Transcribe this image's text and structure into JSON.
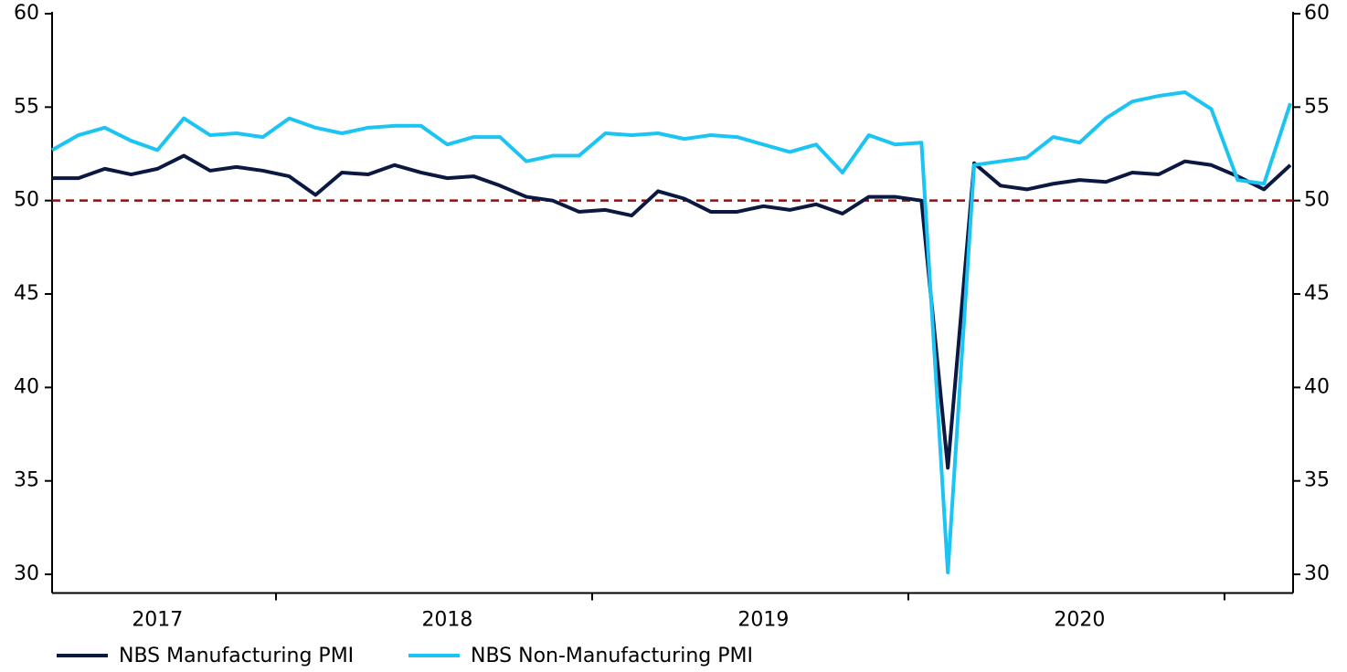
{
  "chart_data": {
    "type": "line",
    "categories": [
      null,
      null,
      null,
      null,
      "2017",
      null,
      null,
      null,
      null,
      null,
      null,
      null,
      null,
      null,
      null,
      "2018",
      null,
      null,
      null,
      null,
      null,
      null,
      null,
      null,
      null,
      null,
      null,
      "2019",
      null,
      null,
      null,
      null,
      null,
      null,
      null,
      null,
      null,
      null,
      null,
      "2020",
      null,
      null,
      null,
      null,
      null,
      null,
      null,
      null
    ],
    "series": [
      {
        "name": "NBS Manufacturing PMI",
        "color": "#0b1840",
        "values": [
          51.2,
          51.2,
          51.7,
          51.4,
          51.7,
          52.4,
          51.6,
          51.8,
          51.6,
          51.3,
          50.3,
          51.5,
          51.4,
          51.9,
          51.5,
          51.2,
          51.3,
          50.8,
          50.2,
          50.0,
          49.4,
          49.5,
          49.2,
          50.5,
          50.1,
          49.4,
          49.4,
          49.7,
          49.5,
          49.8,
          49.3,
          50.2,
          50.2,
          50.0,
          35.7,
          52.0,
          50.8,
          50.6,
          50.9,
          51.1,
          51.0,
          51.5,
          51.4,
          52.1,
          51.9,
          51.3,
          50.6,
          51.9
        ]
      },
      {
        "name": "NBS Non-Manufacturing PMI",
        "color": "#1cc4f4",
        "values": [
          52.7,
          53.5,
          53.9,
          53.2,
          52.7,
          54.4,
          53.5,
          53.6,
          53.4,
          54.4,
          53.9,
          53.6,
          53.9,
          54.0,
          54.0,
          53.0,
          53.4,
          53.4,
          52.1,
          52.4,
          52.4,
          53.6,
          53.5,
          53.6,
          53.3,
          53.5,
          53.4,
          53.0,
          52.6,
          53.0,
          51.5,
          53.5,
          53.0,
          53.1,
          30.1,
          51.9,
          52.1,
          52.3,
          53.4,
          53.1,
          54.4,
          55.3,
          55.6,
          55.8,
          54.9,
          51.1,
          50.9,
          55.2
        ]
      }
    ],
    "reference_line": {
      "value": 50,
      "color": "#8b1111"
    },
    "ylim": [
      29,
      60
    ],
    "yticks": [
      30,
      35,
      40,
      45,
      50,
      55,
      60
    ],
    "y2lim": [
      29,
      60
    ],
    "y2ticks": [
      30,
      35,
      40,
      45,
      50,
      55,
      60
    ],
    "legend": "bottom"
  }
}
